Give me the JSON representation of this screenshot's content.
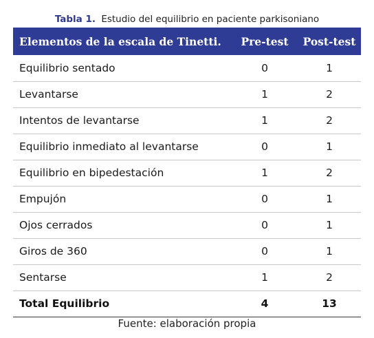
{
  "caption": {
    "label": "Tabla 1.",
    "title": "Estudio del equilibrio en paciente parkisoniano"
  },
  "table": {
    "headers": [
      "Elementos de la escala de Tinetti.",
      "Pre-test",
      "Post-test"
    ],
    "rows": [
      {
        "item": "Equilibrio sentado",
        "pre": "0",
        "post": "1"
      },
      {
        "item": "Levantarse",
        "pre": "1",
        "post": "2"
      },
      {
        "item": "Intentos de levantarse",
        "pre": "1",
        "post": "2"
      },
      {
        "item": "Equilibrio inmediato al levantarse",
        "pre": "0",
        "post": "1"
      },
      {
        "item": "Equilibrio en bipedestación",
        "pre": "1",
        "post": "2"
      },
      {
        "item": "Empujón",
        "pre": "0",
        "post": "1"
      },
      {
        "item": "Ojos cerrados",
        "pre": "0",
        "post": "1"
      },
      {
        "item": "Giros de 360",
        "pre": "0",
        "post": "1"
      },
      {
        "item": "Sentarse",
        "pre": "1",
        "post": "2"
      }
    ],
    "total": {
      "item": "Total Equilibrio",
      "pre": "4",
      "post": "13"
    }
  },
  "source": "Fuente: elaboración propia",
  "colors": {
    "header_bg": "#2e3c96",
    "caption_label": "#2f3a8f"
  }
}
